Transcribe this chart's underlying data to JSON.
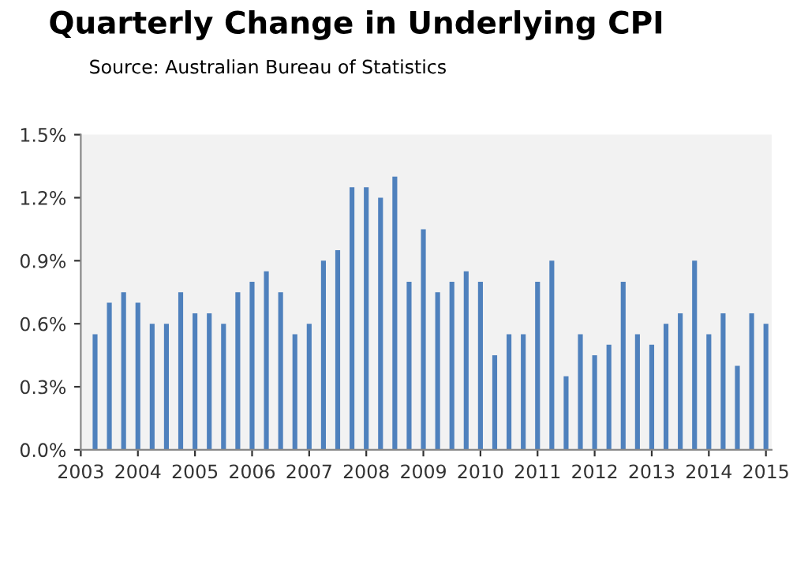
{
  "chart_data": {
    "type": "bar",
    "title": "Quarterly Change in Underlying CPI",
    "subtitle": "Source: Australian Bureau of Statistics",
    "x": [
      2003.25,
      2003.5,
      2003.75,
      2004.0,
      2004.25,
      2004.5,
      2004.75,
      2005.0,
      2005.25,
      2005.5,
      2005.75,
      2006.0,
      2006.25,
      2006.5,
      2006.75,
      2007.0,
      2007.25,
      2007.5,
      2007.75,
      2008.0,
      2008.25,
      2008.5,
      2008.75,
      2009.0,
      2009.25,
      2009.5,
      2009.75,
      2010.0,
      2010.25,
      2010.5,
      2010.75,
      2011.0,
      2011.25,
      2011.5,
      2011.75,
      2012.0,
      2012.25,
      2012.5,
      2012.75,
      2013.0,
      2013.25,
      2013.5,
      2013.75,
      2014.0,
      2014.25,
      2014.5,
      2014.75,
      2015.0
    ],
    "values": [
      0.55,
      0.7,
      0.75,
      0.7,
      0.6,
      0.6,
      0.75,
      0.65,
      0.65,
      0.6,
      0.75,
      0.8,
      0.85,
      0.75,
      0.55,
      0.6,
      0.9,
      0.95,
      1.25,
      1.25,
      1.2,
      1.3,
      0.8,
      1.05,
      0.75,
      0.8,
      0.85,
      0.8,
      0.45,
      0.55,
      0.55,
      0.8,
      0.9,
      0.35,
      0.55,
      0.45,
      0.5,
      0.8,
      0.55,
      0.5,
      0.6,
      0.65,
      0.9,
      0.55,
      0.65,
      0.4,
      0.65,
      0.6
    ],
    "color": "#4f81bd",
    "xlim": [
      2003,
      2015.1
    ],
    "xticks": [
      2003,
      2004,
      2005,
      2006,
      2007,
      2008,
      2009,
      2010,
      2011,
      2012,
      2013,
      2014,
      2015
    ],
    "ylim": [
      0,
      1.5
    ],
    "yticks": [
      {
        "value": 0,
        "label": "0.0%"
      },
      {
        "value": 0.3,
        "label": "0.3%"
      },
      {
        "value": 0.6,
        "label": "0.6%"
      },
      {
        "value": 0.9,
        "label": "0.9%"
      },
      {
        "value": 1.2,
        "label": "1.2%"
      },
      {
        "value": 1.5,
        "label": "1.5%"
      }
    ],
    "grid": false
  }
}
